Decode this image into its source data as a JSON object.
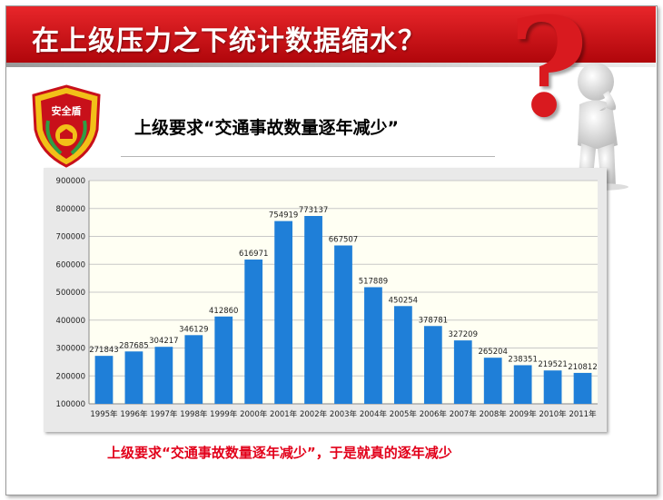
{
  "header": {
    "title": "在上级压力之下统计数据缩水？"
  },
  "badge": {
    "text": "安全盾"
  },
  "subtitle": "上级要求“交通事故数量逐年减少”",
  "caption": "上级要求“交通事故数量逐年减少”，于是就真的逐年减少",
  "colors": {
    "banner": "#c8101a",
    "bar": "#1f7fd8",
    "plot_bg": "#fffff3",
    "caption": "#e2001a"
  },
  "chart_data": {
    "type": "bar",
    "title": "",
    "xlabel": "",
    "ylabel": "",
    "ylim": [
      100000,
      900000
    ],
    "yticks": [
      "100000",
      "200000",
      "300000",
      "400000",
      "500000",
      "600000",
      "700000",
      "800000",
      "900000"
    ],
    "grid": true,
    "categories": [
      "1995年",
      "1996年",
      "1997年",
      "1998年",
      "1999年",
      "2000年",
      "2001年",
      "2002年",
      "2003年",
      "2004年",
      "2005年",
      "2006年",
      "2007年",
      "2008年",
      "2009年",
      "2010年",
      "2011年"
    ],
    "values": [
      271843,
      287685,
      304217,
      346129,
      412860,
      616971,
      754919,
      773137,
      667507,
      517889,
      450254,
      378781,
      327209,
      265204,
      238351,
      219521,
      210812
    ]
  }
}
